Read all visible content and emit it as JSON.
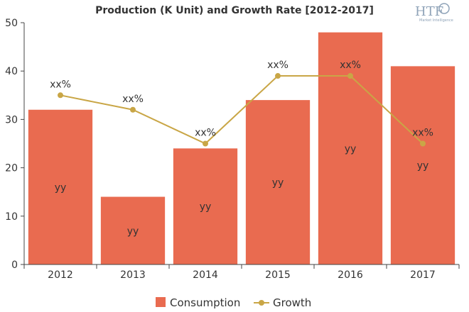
{
  "chart_data": {
    "type": "bar",
    "title": "Production (K Unit) and Growth Rate [2012-2017]",
    "categories": [
      "2012",
      "2013",
      "2014",
      "2015",
      "2016",
      "2017"
    ],
    "series": [
      {
        "name": "Consumption",
        "kind": "bar",
        "values": [
          32,
          14,
          24,
          34,
          48,
          41
        ],
        "labels": [
          "yy",
          "yy",
          "yy",
          "yy",
          "yy",
          "yy"
        ],
        "color": "#e96b50"
      },
      {
        "name": "Growth",
        "kind": "line",
        "values": [
          35,
          32,
          25,
          39,
          39,
          25
        ],
        "labels": [
          "xx%",
          "xx%",
          "xx%",
          "xx%",
          "xx%",
          "xx%"
        ],
        "color": "#c9a646"
      }
    ],
    "y_ticks": [
      0,
      10,
      20,
      30,
      40,
      50
    ],
    "ylim": [
      0,
      50
    ],
    "grid": false,
    "legend": "bottom-center"
  },
  "logo": {
    "text": "HTF",
    "subtext": "Market Intelligence"
  }
}
